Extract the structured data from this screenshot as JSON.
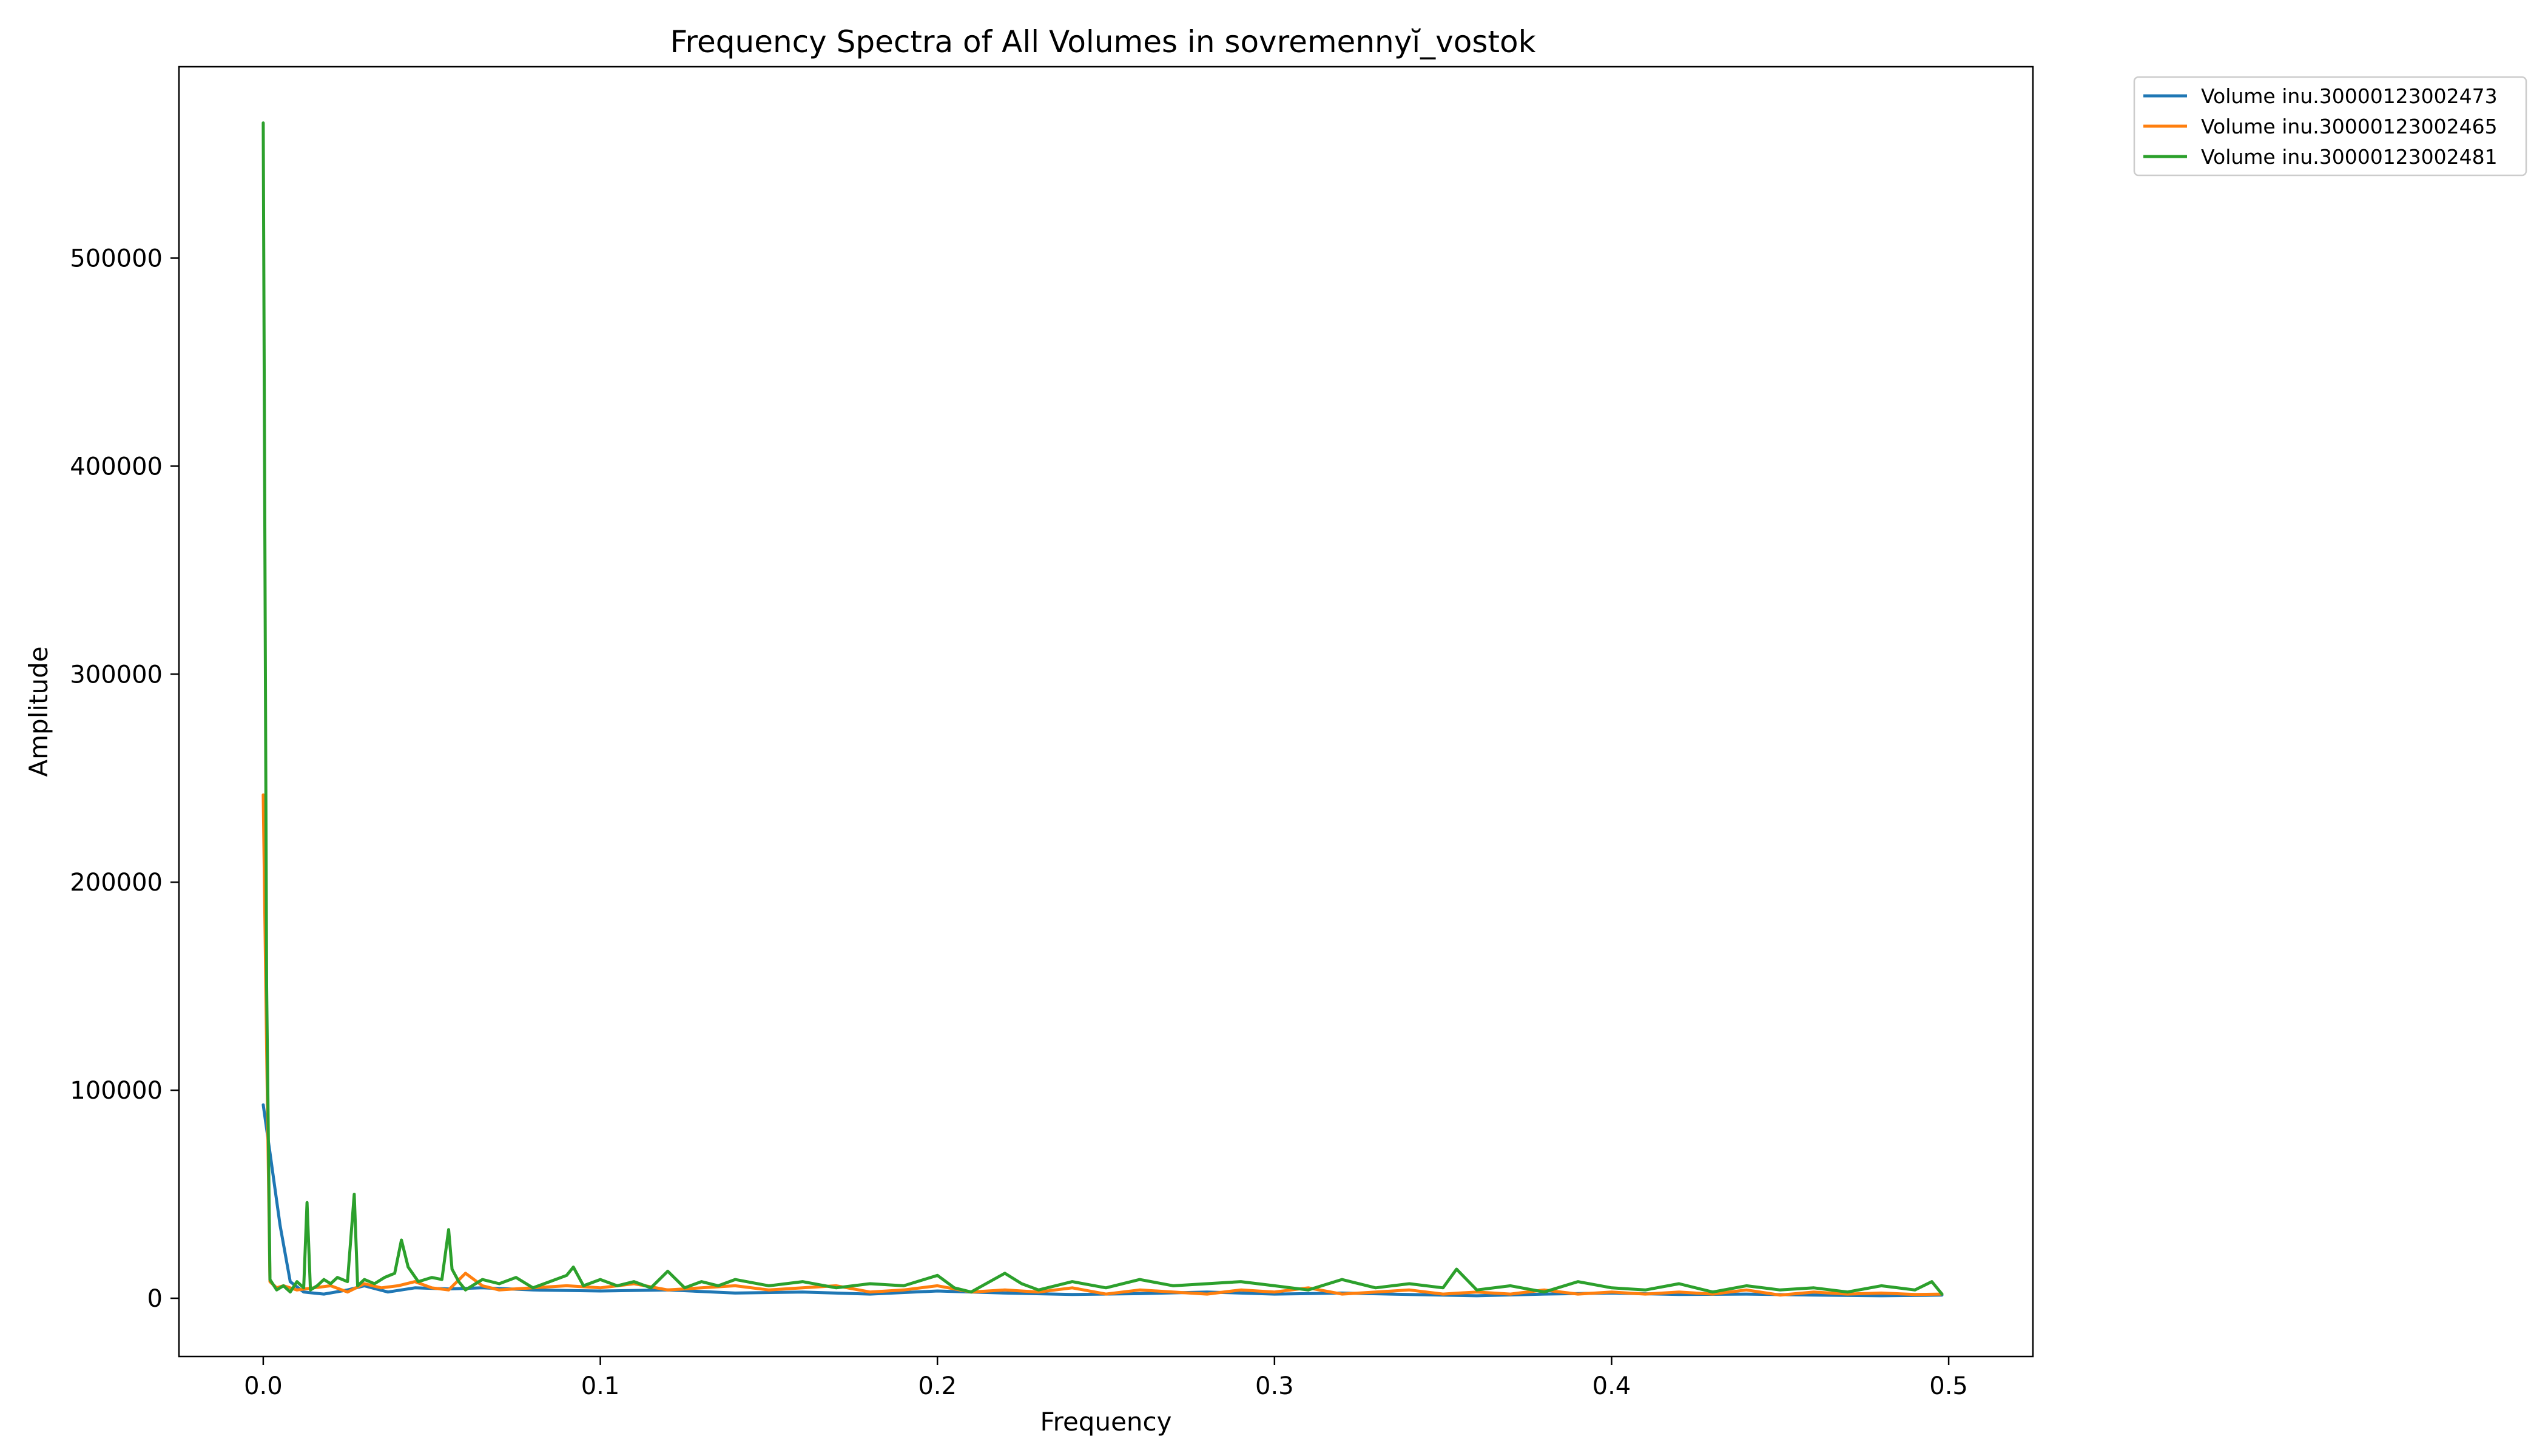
{
  "chart_data": {
    "type": "line",
    "title": "Frequency Spectra of All Volumes in sovremennyĭ_vostok",
    "xlabel": "Frequency",
    "ylabel": "Amplitude",
    "xlim": [
      -0.025,
      0.525
    ],
    "ylim": [
      -28000,
      592000
    ],
    "xticks": [
      0.0,
      0.1,
      0.2,
      0.3,
      0.4,
      0.5
    ],
    "xtick_labels": [
      "0.0",
      "0.1",
      "0.2",
      "0.3",
      "0.4",
      "0.5"
    ],
    "yticks": [
      0,
      100000,
      200000,
      300000,
      400000,
      500000
    ],
    "ytick_labels": [
      "0",
      "100000",
      "200000",
      "300000",
      "400000",
      "500000"
    ],
    "grid": false,
    "legend_position": "outside-top-right",
    "series": [
      {
        "name": "Volume inu.30000123002473",
        "color": "#1f77b4",
        "x": [
          0.0,
          0.002,
          0.005,
          0.008,
          0.012,
          0.018,
          0.025,
          0.03,
          0.037,
          0.045,
          0.055,
          0.065,
          0.08,
          0.1,
          0.12,
          0.14,
          0.16,
          0.18,
          0.2,
          0.22,
          0.24,
          0.26,
          0.28,
          0.3,
          0.32,
          0.34,
          0.36,
          0.38,
          0.4,
          0.42,
          0.44,
          0.46,
          0.48,
          0.498
        ],
        "y": [
          93000,
          70000,
          35000,
          8000,
          3000,
          2000,
          4000,
          6000,
          3000,
          5000,
          4500,
          5000,
          4000,
          3500,
          4000,
          2500,
          3000,
          2000,
          3500,
          2500,
          1800,
          2200,
          3000,
          2000,
          2500,
          1800,
          1200,
          2000,
          2500,
          1800,
          2000,
          1500,
          1200,
          1500
        ]
      },
      {
        "name": "Volume inu.30000123002465",
        "color": "#ff7f0e",
        "x": [
          0.0,
          0.001,
          0.002,
          0.004,
          0.006,
          0.01,
          0.015,
          0.02,
          0.025,
          0.03,
          0.035,
          0.04,
          0.045,
          0.05,
          0.055,
          0.06,
          0.065,
          0.07,
          0.08,
          0.09,
          0.1,
          0.11,
          0.12,
          0.13,
          0.14,
          0.15,
          0.16,
          0.17,
          0.18,
          0.19,
          0.2,
          0.21,
          0.22,
          0.23,
          0.24,
          0.25,
          0.26,
          0.27,
          0.28,
          0.29,
          0.3,
          0.31,
          0.32,
          0.33,
          0.34,
          0.35,
          0.36,
          0.37,
          0.38,
          0.39,
          0.4,
          0.41,
          0.42,
          0.43,
          0.44,
          0.45,
          0.46,
          0.47,
          0.48,
          0.49,
          0.498
        ],
        "y": [
          242000,
          120000,
          8000,
          5000,
          6000,
          4000,
          5000,
          6000,
          3000,
          7000,
          5000,
          6000,
          8000,
          5000,
          4000,
          12000,
          6000,
          4000,
          5000,
          6000,
          5000,
          7000,
          4000,
          5000,
          6000,
          4000,
          5000,
          6000,
          3000,
          4000,
          6000,
          3000,
          4000,
          3000,
          5000,
          2000,
          4000,
          3000,
          2000,
          4000,
          3000,
          5000,
          2000,
          3000,
          4000,
          2000,
          3000,
          2000,
          4000,
          2000,
          3000,
          2000,
          3000,
          2000,
          4000,
          1500,
          3000,
          2000,
          2500,
          1800,
          2000
        ]
      },
      {
        "name": "Volume inu.30000123002481",
        "color": "#2ca02c",
        "x": [
          0.0,
          0.001,
          0.002,
          0.004,
          0.006,
          0.008,
          0.01,
          0.012,
          0.013,
          0.014,
          0.016,
          0.018,
          0.02,
          0.022,
          0.025,
          0.027,
          0.028,
          0.03,
          0.033,
          0.036,
          0.039,
          0.041,
          0.043,
          0.046,
          0.05,
          0.053,
          0.055,
          0.056,
          0.058,
          0.06,
          0.065,
          0.07,
          0.075,
          0.08,
          0.085,
          0.09,
          0.092,
          0.095,
          0.1,
          0.105,
          0.11,
          0.115,
          0.12,
          0.125,
          0.13,
          0.135,
          0.14,
          0.15,
          0.16,
          0.17,
          0.18,
          0.19,
          0.2,
          0.205,
          0.21,
          0.22,
          0.225,
          0.23,
          0.24,
          0.25,
          0.26,
          0.27,
          0.28,
          0.29,
          0.3,
          0.31,
          0.32,
          0.33,
          0.34,
          0.35,
          0.354,
          0.36,
          0.37,
          0.38,
          0.39,
          0.4,
          0.41,
          0.42,
          0.43,
          0.44,
          0.45,
          0.46,
          0.47,
          0.48,
          0.49,
          0.495,
          0.498
        ],
        "y": [
          565000,
          150000,
          9000,
          4000,
          6000,
          3000,
          8000,
          5000,
          46000,
          4000,
          6000,
          9000,
          7000,
          10000,
          8000,
          50000,
          6000,
          9000,
          7000,
          10000,
          12000,
          28000,
          15000,
          8000,
          10000,
          9000,
          33000,
          14000,
          8000,
          4000,
          9000,
          7000,
          10000,
          5000,
          8000,
          11000,
          15000,
          6000,
          9000,
          6000,
          8000,
          5000,
          13000,
          5000,
          8000,
          6000,
          9000,
          6000,
          8000,
          5000,
          7000,
          6000,
          11000,
          5000,
          3000,
          12000,
          7000,
          4000,
          8000,
          5000,
          9000,
          6000,
          7000,
          8000,
          6000,
          4000,
          9000,
          5000,
          7000,
          5000,
          14000,
          4000,
          6000,
          3000,
          8000,
          5000,
          4000,
          7000,
          3000,
          6000,
          4000,
          5000,
          3000,
          6000,
          4000,
          8000,
          2000
        ]
      }
    ]
  }
}
